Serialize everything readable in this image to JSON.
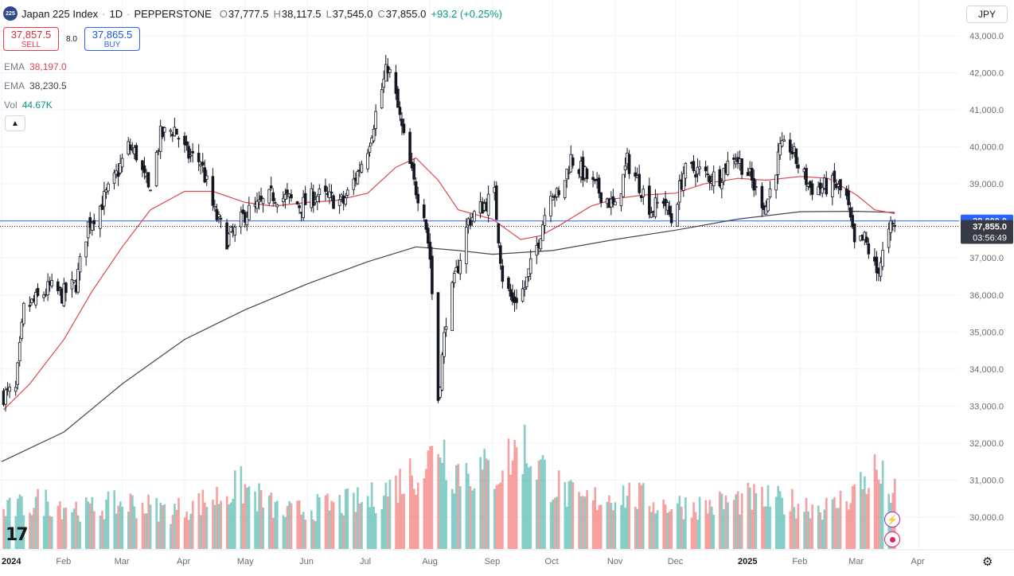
{
  "header": {
    "symbol_badge": "225",
    "title": "Japan 225 Index",
    "interval": "1D",
    "source": "PEPPERSTONE",
    "o_label": "O",
    "o": "37,777.5",
    "h_label": "H",
    "h": "38,117.5",
    "l_label": "L",
    "l": "37,545.0",
    "c_label": "C",
    "c": "37,855.0",
    "change": "+93.2 (+0.25%)"
  },
  "trade": {
    "sell_price": "37,857.5",
    "sell_label": "SELL",
    "spread": "8.0",
    "buy_price": "37,865.5",
    "buy_label": "BUY"
  },
  "indicators": [
    {
      "name": "EMA",
      "value": "38,197.0",
      "color": "#e0464f"
    },
    {
      "name": "EMA",
      "value": "38,230.5",
      "color": "#434651"
    },
    {
      "name": "Vol",
      "value": "44.67K",
      "color": "#089981"
    }
  ],
  "collapse_icon": "chevron-up-icon",
  "currency": "JPY",
  "colors": {
    "up": "#089981",
    "down": "#f23645",
    "candle": "#131722",
    "ema_fast": "#e0464f",
    "ema_slow": "#434651",
    "vol_up": "#26a69a",
    "vol_down": "#ef5350",
    "price_line": "#2962ff",
    "grid": "#f0f3fa"
  },
  "chart_data": {
    "type": "candlestick",
    "title": "Japan 225 Index · 1D · PEPPERSTONE",
    "xlabel": "",
    "ylabel": "",
    "x_range": [
      "2024-01-01",
      "2025-03-31"
    ],
    "ylim": [
      29000,
      43300
    ],
    "y_ticks": [
      "43,000.0",
      "42,000.0",
      "41,000.0",
      "40,000.0",
      "39,000.0",
      "38,000.0",
      "37,000.0",
      "36,000.0",
      "35,000.0",
      "34,000.0",
      "33,000.0",
      "32,000.0",
      "31,000.0",
      "30,000.0"
    ],
    "x_ticks": [
      {
        "label": "2024",
        "date": "2024-01-01",
        "bold": true
      },
      {
        "label": "Feb",
        "date": "2024-02-01"
      },
      {
        "label": "Mar",
        "date": "2024-03-01"
      },
      {
        "label": "Apr",
        "date": "2024-04-01"
      },
      {
        "label": "May",
        "date": "2024-05-01"
      },
      {
        "label": "Jun",
        "date": "2024-06-01"
      },
      {
        "label": "Jul",
        "date": "2024-07-01"
      },
      {
        "label": "Aug",
        "date": "2024-08-01"
      },
      {
        "label": "Sep",
        "date": "2024-09-01"
      },
      {
        "label": "Oct",
        "date": "2024-10-01"
      },
      {
        "label": "Nov",
        "date": "2024-11-01"
      },
      {
        "label": "Dec",
        "date": "2024-12-01"
      },
      {
        "label": "2025",
        "date": "2025-01-01",
        "bold": true
      },
      {
        "label": "Feb",
        "date": "2025-02-01"
      },
      {
        "label": "Mar",
        "date": "2025-03-01"
      },
      {
        "label": "Apr",
        "date": "2025-04-01"
      }
    ],
    "close_path": [
      [
        "2024-01-02",
        33300
      ],
      [
        "2024-01-08",
        33400
      ],
      [
        "2024-01-12",
        35600
      ],
      [
        "2024-01-19",
        35900
      ],
      [
        "2024-01-25",
        36200
      ],
      [
        "2024-01-31",
        36000
      ],
      [
        "2024-02-07",
        36300
      ],
      [
        "2024-02-13",
        37900
      ],
      [
        "2024-02-19",
        38400
      ],
      [
        "2024-02-26",
        39100
      ],
      [
        "2024-03-04",
        40000
      ],
      [
        "2024-03-08",
        39800
      ],
      [
        "2024-03-14",
        38800
      ],
      [
        "2024-03-20",
        40300
      ],
      [
        "2024-03-27",
        40500
      ],
      [
        "2024-04-02",
        39800
      ],
      [
        "2024-04-09",
        39600
      ],
      [
        "2024-04-16",
        38200
      ],
      [
        "2024-04-22",
        37500
      ],
      [
        "2024-04-26",
        37700
      ],
      [
        "2024-05-01",
        38200
      ],
      [
        "2024-05-08",
        38400
      ],
      [
        "2024-05-15",
        38700
      ],
      [
        "2024-05-22",
        38600
      ],
      [
        "2024-05-29",
        38400
      ],
      [
        "2024-06-05",
        38700
      ],
      [
        "2024-06-12",
        38600
      ],
      [
        "2024-06-19",
        38500
      ],
      [
        "2024-06-26",
        39300
      ],
      [
        "2024-07-01",
        40000
      ],
      [
        "2024-07-05",
        40900
      ],
      [
        "2024-07-11",
        42200
      ],
      [
        "2024-07-15",
        41300
      ],
      [
        "2024-07-19",
        40200
      ],
      [
        "2024-07-24",
        39000
      ],
      [
        "2024-07-29",
        38300
      ],
      [
        "2024-08-01",
        37000
      ],
      [
        "2024-08-05",
        33200
      ],
      [
        "2024-08-09",
        35400
      ],
      [
        "2024-08-15",
        36800
      ],
      [
        "2024-08-20",
        38000
      ],
      [
        "2024-08-27",
        38400
      ],
      [
        "2024-09-02",
        38700
      ],
      [
        "2024-09-06",
        36500
      ],
      [
        "2024-09-11",
        35800
      ],
      [
        "2024-09-17",
        36200
      ],
      [
        "2024-09-24",
        37500
      ],
      [
        "2024-09-30",
        38900
      ],
      [
        "2024-10-04",
        38600
      ],
      [
        "2024-10-10",
        39700
      ],
      [
        "2024-10-16",
        39300
      ],
      [
        "2024-10-22",
        38900
      ],
      [
        "2024-10-28",
        38600
      ],
      [
        "2024-11-01",
        38300
      ],
      [
        "2024-11-07",
        39600
      ],
      [
        "2024-11-13",
        39000
      ],
      [
        "2024-11-19",
        38300
      ],
      [
        "2024-11-25",
        38600
      ],
      [
        "2024-11-29",
        38000
      ],
      [
        "2024-12-05",
        39300
      ],
      [
        "2024-12-11",
        39400
      ],
      [
        "2024-12-17",
        39200
      ],
      [
        "2024-12-23",
        39200
      ],
      [
        "2024-12-30",
        39800
      ],
      [
        "2025-01-06",
        39300
      ],
      [
        "2025-01-10",
        38800
      ],
      [
        "2025-01-15",
        38400
      ],
      [
        "2025-01-22",
        39900
      ],
      [
        "2025-01-27",
        40000
      ],
      [
        "2025-01-31",
        39500
      ],
      [
        "2025-02-06",
        38900
      ],
      [
        "2025-02-12",
        38900
      ],
      [
        "2025-02-18",
        39000
      ],
      [
        "2025-02-24",
        38600
      ],
      [
        "2025-02-28",
        37300
      ],
      [
        "2025-03-05",
        37500
      ],
      [
        "2025-03-11",
        36600
      ],
      [
        "2025-03-14",
        37100
      ],
      [
        "2025-03-18",
        37800
      ],
      [
        "2025-03-20",
        37855
      ]
    ],
    "ema_fast": [
      [
        "2024-01-02",
        32900
      ],
      [
        "2024-01-15",
        33600
      ],
      [
        "2024-02-01",
        34800
      ],
      [
        "2024-02-15",
        36100
      ],
      [
        "2024-03-01",
        37300
      ],
      [
        "2024-03-15",
        38300
      ],
      [
        "2024-04-01",
        38800
      ],
      [
        "2024-04-15",
        38800
      ],
      [
        "2024-05-01",
        38500
      ],
      [
        "2024-05-15",
        38400
      ],
      [
        "2024-06-01",
        38500
      ],
      [
        "2024-06-15",
        38550
      ],
      [
        "2024-07-01",
        38750
      ],
      [
        "2024-07-15",
        39450
      ],
      [
        "2024-07-25",
        39700
      ],
      [
        "2024-08-05",
        39100
      ],
      [
        "2024-08-15",
        38300
      ],
      [
        "2024-09-01",
        38050
      ],
      [
        "2024-09-15",
        37500
      ],
      [
        "2024-09-25",
        37600
      ],
      [
        "2024-10-05",
        37900
      ],
      [
        "2024-10-20",
        38400
      ],
      [
        "2024-11-01",
        38600
      ],
      [
        "2024-11-15",
        38700
      ],
      [
        "2024-12-01",
        38750
      ],
      [
        "2024-12-15",
        39000
      ],
      [
        "2025-01-01",
        39150
      ],
      [
        "2025-01-15",
        39100
      ],
      [
        "2025-02-01",
        39200
      ],
      [
        "2025-02-15",
        39150
      ],
      [
        "2025-03-01",
        38700
      ],
      [
        "2025-03-10",
        38300
      ],
      [
        "2025-03-20",
        38197
      ]
    ],
    "ema_slow": [
      [
        "2024-01-01",
        31500
      ],
      [
        "2024-02-01",
        32300
      ],
      [
        "2024-03-01",
        33600
      ],
      [
        "2024-04-01",
        34800
      ],
      [
        "2024-05-01",
        35600
      ],
      [
        "2024-06-01",
        36300
      ],
      [
        "2024-07-01",
        36900
      ],
      [
        "2024-07-25",
        37300
      ],
      [
        "2024-08-15",
        37200
      ],
      [
        "2024-09-01",
        37100
      ],
      [
        "2024-10-01",
        37200
      ],
      [
        "2024-11-01",
        37500
      ],
      [
        "2024-12-01",
        37750
      ],
      [
        "2025-01-01",
        38050
      ],
      [
        "2025-02-01",
        38250
      ],
      [
        "2025-03-01",
        38260
      ],
      [
        "2025-03-20",
        38230.5
      ]
    ],
    "volume": [
      [
        "2024-01-02",
        2100
      ],
      [
        "2024-01-22",
        2700
      ],
      [
        "2024-02-12",
        2200
      ],
      [
        "2024-03-04",
        2600
      ],
      [
        "2024-03-25",
        2100
      ],
      [
        "2024-04-15",
        2800
      ],
      [
        "2024-04-29",
        3500
      ],
      [
        "2024-05-20",
        2000
      ],
      [
        "2024-06-10",
        2400
      ],
      [
        "2024-07-01",
        2700
      ],
      [
        "2024-07-15",
        3600
      ],
      [
        "2024-08-01",
        5000
      ],
      [
        "2024-08-05",
        6300
      ],
      [
        "2024-08-12",
        4500
      ],
      [
        "2024-09-02",
        4300
      ],
      [
        "2024-09-16",
        5800
      ],
      [
        "2024-09-30",
        3800
      ],
      [
        "2024-10-14",
        2600
      ],
      [
        "2024-11-04",
        3100
      ],
      [
        "2024-11-25",
        2500
      ],
      [
        "2024-12-16",
        2400
      ],
      [
        "2025-01-06",
        2800
      ],
      [
        "2025-01-27",
        2600
      ],
      [
        "2025-02-17",
        2300
      ],
      [
        "2025-03-03",
        3600
      ],
      [
        "2025-03-10",
        4300
      ],
      [
        "2025-03-20",
        3000
      ]
    ],
    "volume_scale_max": 7000,
    "last_price": "37,855.0",
    "countdown": "03:56:49",
    "key_level": "38,000.0",
    "key_level_value": 38000,
    "last_price_value": 37855
  }
}
